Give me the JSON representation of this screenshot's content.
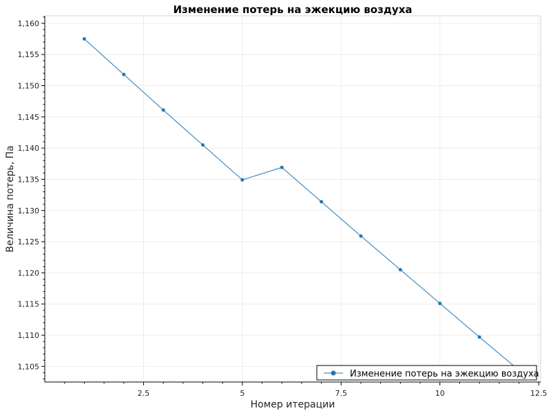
{
  "chart_data": {
    "type": "line",
    "title": "Изменение потерь на эжекцию воздуха",
    "xlabel": "Номер итерации",
    "ylabel": "Величина потерь, Па",
    "x": [
      1,
      2,
      3,
      4,
      5,
      6,
      7,
      8,
      9,
      10,
      11,
      12
    ],
    "series": [
      {
        "name": "Изменение потерь на эжекцию воздуха",
        "values": [
          1.1575,
          1.1518,
          1.1461,
          1.1405,
          1.1349,
          1.1369,
          1.1314,
          1.1259,
          1.1205,
          1.1151,
          1.1097,
          1.1044
        ],
        "color": "#1f77b4"
      }
    ],
    "xlim": [
      0.0,
      12.55
    ],
    "ylim": [
      1.1025,
      1.1612
    ],
    "x_ticks": [
      2.5,
      5,
      7.5,
      10,
      12.5
    ],
    "x_tick_labels": [
      "2.5",
      "5",
      "7.5",
      "10",
      "12.5"
    ],
    "y_ticks": [
      1.105,
      1.11,
      1.115,
      1.12,
      1.125,
      1.13,
      1.135,
      1.14,
      1.145,
      1.15,
      1.155,
      1.16
    ],
    "y_tick_labels": [
      "1,105",
      "1,110",
      "1,115",
      "1,120",
      "1,125",
      "1,130",
      "1,135",
      "1,140",
      "1,145",
      "1,150",
      "1,155",
      "1,160"
    ],
    "grid": true,
    "legend_position": "bottom-right"
  }
}
